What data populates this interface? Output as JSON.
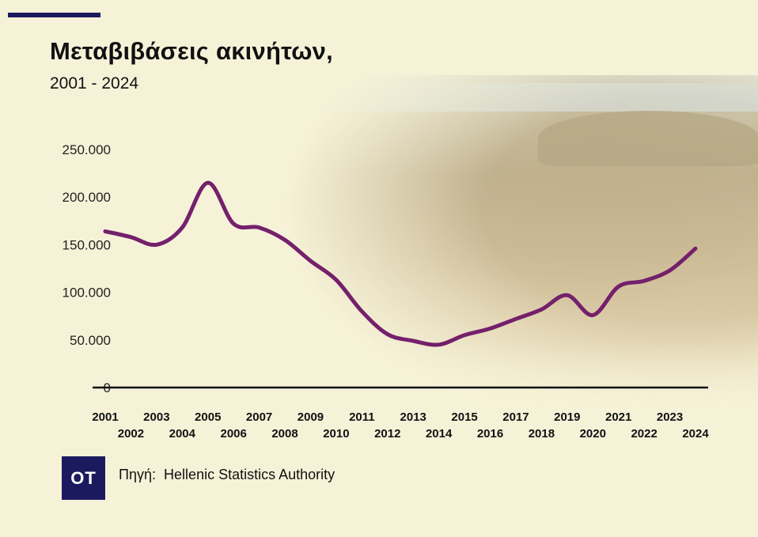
{
  "header": {
    "title": "Μεταβιβάσεις ακινήτων,",
    "subtitle": "2001 - 2024"
  },
  "footer": {
    "logo_text": "OT",
    "source_label": "Πηγή:",
    "source_name": "Hellenic Statistics Authority"
  },
  "colors": {
    "line": "#74206b",
    "accent": "#1c1a5e",
    "background": "#f6f2d8"
  },
  "chart_data": {
    "type": "line",
    "title": "Μεταβιβάσεις ακινήτων,",
    "subtitle": "2001 - 2024",
    "xlabel": "",
    "ylabel": "",
    "ylim": [
      0,
      250000
    ],
    "y_ticks": [
      "0",
      "50.000",
      "100.000",
      "150.000",
      "200.000",
      "250.000"
    ],
    "x": [
      "2001",
      "2002",
      "2003",
      "2004",
      "2005",
      "2006",
      "2007",
      "2008",
      "2009",
      "2010",
      "2011",
      "2012",
      "2013",
      "2014",
      "2015",
      "2016",
      "2017",
      "2018",
      "2019",
      "2020",
      "2021",
      "2022",
      "2023",
      "2024"
    ],
    "series": [
      {
        "values": [
          164000,
          158000,
          150000,
          168000,
          215000,
          172000,
          168000,
          155000,
          133000,
          113000,
          80000,
          56000,
          49000,
          45000,
          55000,
          62000,
          72000,
          82000,
          97000,
          76000,
          106000,
          112000,
          123000,
          146000
        ]
      }
    ],
    "grid": false,
    "legend": "none"
  }
}
